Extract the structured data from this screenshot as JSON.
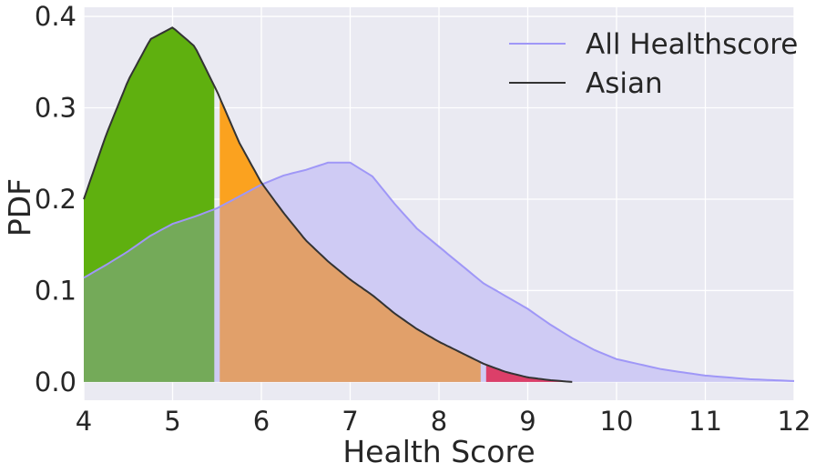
{
  "chart_data": {
    "type": "area",
    "title": "",
    "xlabel": "Health Score",
    "ylabel": "PDF",
    "xlim": [
      4,
      12
    ],
    "ylim": [
      -0.02,
      0.41
    ],
    "xticks": [
      "4",
      "5",
      "6",
      "7",
      "8",
      "9",
      "10",
      "11",
      "12"
    ],
    "yticks": [
      "0.0",
      "0.1",
      "0.2",
      "0.3",
      "0.4"
    ],
    "grid": true,
    "legend_position": "top-right",
    "series": [
      {
        "name": "All Healthscore",
        "color": "#9f97f7",
        "fill": "#cfcbf4",
        "x": [
          4.0,
          4.25,
          4.5,
          4.75,
          5.0,
          5.25,
          5.5,
          5.75,
          6.0,
          6.25,
          6.5,
          6.75,
          7.0,
          7.25,
          7.5,
          7.75,
          8.0,
          8.25,
          8.5,
          8.75,
          9.0,
          9.25,
          9.5,
          9.75,
          10.0,
          10.5,
          11.0,
          11.5,
          12.0
        ],
        "values": [
          0.114,
          0.128,
          0.143,
          0.16,
          0.173,
          0.181,
          0.19,
          0.203,
          0.216,
          0.226,
          0.232,
          0.24,
          0.24,
          0.225,
          0.195,
          0.168,
          0.148,
          0.128,
          0.108,
          0.094,
          0.08,
          0.063,
          0.048,
          0.035,
          0.025,
          0.014,
          0.007,
          0.003,
          0.001
        ]
      },
      {
        "name": "Asian",
        "color": "#333333",
        "x": [
          4.0,
          4.25,
          4.5,
          4.75,
          5.0,
          5.25,
          5.5,
          5.75,
          6.0,
          6.25,
          6.5,
          6.75,
          7.0,
          7.25,
          7.5,
          7.75,
          8.0,
          8.25,
          8.5,
          8.75,
          9.0,
          9.25,
          9.5
        ],
        "values": [
          0.2,
          0.27,
          0.33,
          0.375,
          0.388,
          0.367,
          0.318,
          0.262,
          0.218,
          0.185,
          0.155,
          0.132,
          0.112,
          0.095,
          0.075,
          0.058,
          0.044,
          0.032,
          0.02,
          0.011,
          0.005,
          0.002,
          0.0
        ]
      }
    ],
    "regions": [
      {
        "from": 4.0,
        "to": 5.5,
        "color": "#5fb00f",
        "overlap_color": "#74aa59"
      },
      {
        "from": 5.5,
        "to": 8.5,
        "color": "#fba21f",
        "overlap_color": "#e1a06a"
      },
      {
        "from": 8.5,
        "to": 9.5,
        "color": "#dc3f69",
        "overlap_color": "#dc3f69"
      }
    ]
  }
}
